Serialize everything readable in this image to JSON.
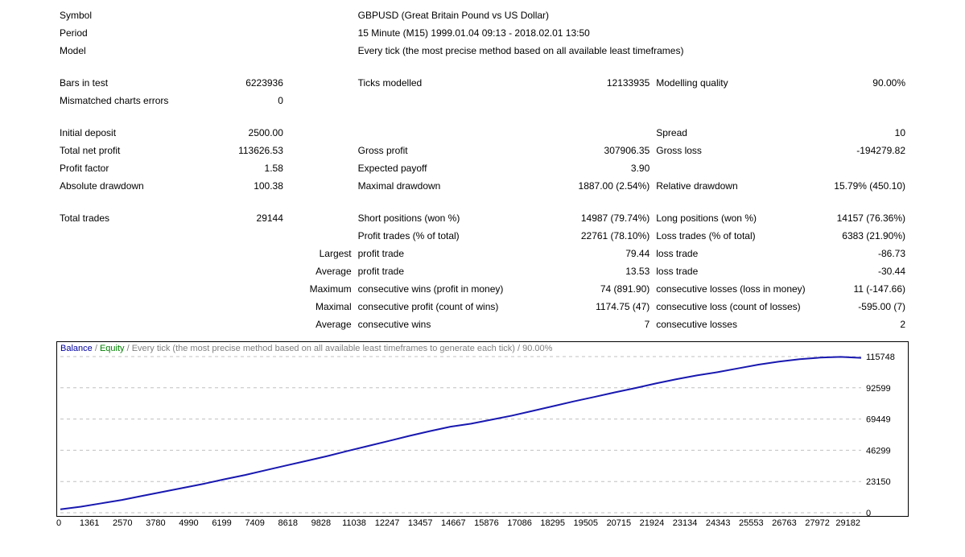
{
  "header": {
    "symbol_label": "Symbol",
    "symbol_value": "GBPUSD (Great Britain Pound vs US Dollar)",
    "period_label": "Period",
    "period_value": "15 Minute (M15) 1999.01.04 09:13 - 2018.02.01 13:50",
    "model_label": "Model",
    "model_value": "Every tick (the most precise method based on all available least timeframes)"
  },
  "r1": {
    "bars_label": "Bars in test",
    "bars_value": "6223936",
    "ticks_label": "Ticks modelled",
    "ticks_value": "12133935",
    "mq_label": "Modelling quality",
    "mq_value": "90.00%"
  },
  "r2": {
    "mm_label": "Mismatched charts errors",
    "mm_value": "0"
  },
  "r3": {
    "dep_label": "Initial deposit",
    "dep_value": "2500.00",
    "spread_label": "Spread",
    "spread_value": "10"
  },
  "r4": {
    "tnp_label": "Total net profit",
    "tnp_value": "113626.53",
    "gp_label": "Gross profit",
    "gp_value": "307906.35",
    "gl_label": "Gross loss",
    "gl_value": "-194279.82"
  },
  "r5": {
    "pf_label": "Profit factor",
    "pf_value": "1.58",
    "ep_label": "Expected payoff",
    "ep_value": "3.90"
  },
  "r6": {
    "ad_label": "Absolute drawdown",
    "ad_value": "100.38",
    "md_label": "Maximal drawdown",
    "md_value": "1887.00 (2.54%)",
    "rd_label": "Relative drawdown",
    "rd_value": "15.79% (450.10)"
  },
  "r7": {
    "tt_label": "Total trades",
    "tt_value": "29144",
    "sp_label": "Short positions (won %)",
    "sp_value": "14987 (79.74%)",
    "lp_label": "Long positions (won %)",
    "lp_value": "14157 (76.36%)"
  },
  "r8": {
    "pt_label": "Profit trades (% of total)",
    "pt_value": "22761 (78.10%)",
    "lt_label": "Loss trades (% of total)",
    "lt_value": "6383 (21.90%)"
  },
  "r9": {
    "cat": "Largest",
    "a_label": "profit trade",
    "a_value": "79.44",
    "b_label": "loss trade",
    "b_value": "-86.73"
  },
  "r10": {
    "cat": "Average",
    "a_label": "profit trade",
    "a_value": "13.53",
    "b_label": "loss trade",
    "b_value": "-30.44"
  },
  "r11": {
    "cat": "Maximum",
    "a_label": "consecutive wins (profit in money)",
    "a_value": "74 (891.90)",
    "b_label": "consecutive losses (loss in money)",
    "b_value": "11 (-147.66)"
  },
  "r12": {
    "cat": "Maximal",
    "a_label": "consecutive profit (count of wins)",
    "a_value": "1174.75 (47)",
    "b_label": "consecutive loss (count of losses)",
    "b_value": "-595.00 (7)"
  },
  "r13": {
    "cat": "Average",
    "a_label": "consecutive wins",
    "a_value": "7",
    "b_label": "consecutive losses",
    "b_value": "2"
  },
  "chart": {
    "legend_balance": "Balance",
    "legend_equity": "Equity",
    "legend_sep": " / ",
    "legend_tail": "Every tick (the most precise method based on all available least timeframes to generate each tick) / 90.00%",
    "line_color": "#1818b0",
    "grid_color": "#c0c0c0",
    "border_color": "#000000",
    "background_color": "#ffffff",
    "y_max": 115748,
    "y_ticks": [
      0,
      23150,
      46299,
      69449,
      92599,
      115748
    ],
    "x_ticks": [
      "0",
      "1361",
      "2570",
      "3780",
      "4990",
      "6199",
      "7409",
      "8618",
      "9828",
      "11038",
      "12247",
      "13457",
      "14667",
      "15876",
      "17086",
      "18295",
      "19505",
      "20715",
      "21924",
      "23134",
      "24343",
      "25553",
      "26763",
      "27972",
      "29182"
    ],
    "series": [
      2500,
      4500,
      7000,
      9500,
      12500,
      15500,
      18500,
      21500,
      24800,
      28000,
      31500,
      35000,
      38500,
      42000,
      45800,
      49500,
      53200,
      57000,
      60500,
      63800,
      66000,
      69000,
      72000,
      75500,
      79000,
      82500,
      85800,
      89200,
      92400,
      95800,
      99000,
      101800,
      104200,
      107000,
      109800,
      112000,
      113800,
      115000,
      115500,
      114800
    ]
  }
}
